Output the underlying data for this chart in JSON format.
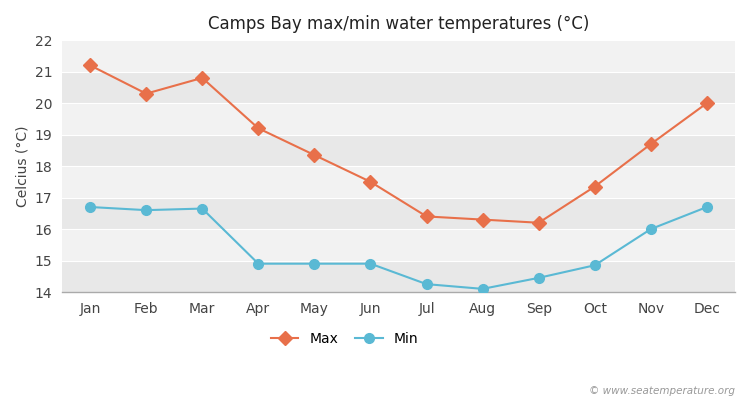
{
  "title": "Camps Bay max/min water temperatures (°C)",
  "ylabel": "Celcius (°C)",
  "months": [
    "Jan",
    "Feb",
    "Mar",
    "Apr",
    "May",
    "Jun",
    "Jul",
    "Aug",
    "Sep",
    "Oct",
    "Nov",
    "Dec"
  ],
  "max_temps": [
    21.2,
    20.3,
    20.8,
    19.2,
    18.35,
    17.5,
    16.4,
    16.3,
    16.2,
    17.35,
    18.7,
    20.0
  ],
  "min_temps": [
    16.7,
    16.6,
    16.65,
    14.9,
    14.9,
    14.9,
    14.25,
    14.1,
    14.45,
    14.85,
    16.0,
    16.7
  ],
  "max_color": "#e8704a",
  "min_color": "#5ab9d4",
  "bg_color": "#ffffff",
  "band_colors": [
    "#e8e8e8",
    "#f2f2f2"
  ],
  "grid_color": "#ffffff",
  "ylim": [
    14.0,
    22.0
  ],
  "yticks": [
    14,
    15,
    16,
    17,
    18,
    19,
    20,
    21,
    22
  ],
  "watermark": "© www.seatemperature.org",
  "legend_max": "Max",
  "legend_min": "Min"
}
